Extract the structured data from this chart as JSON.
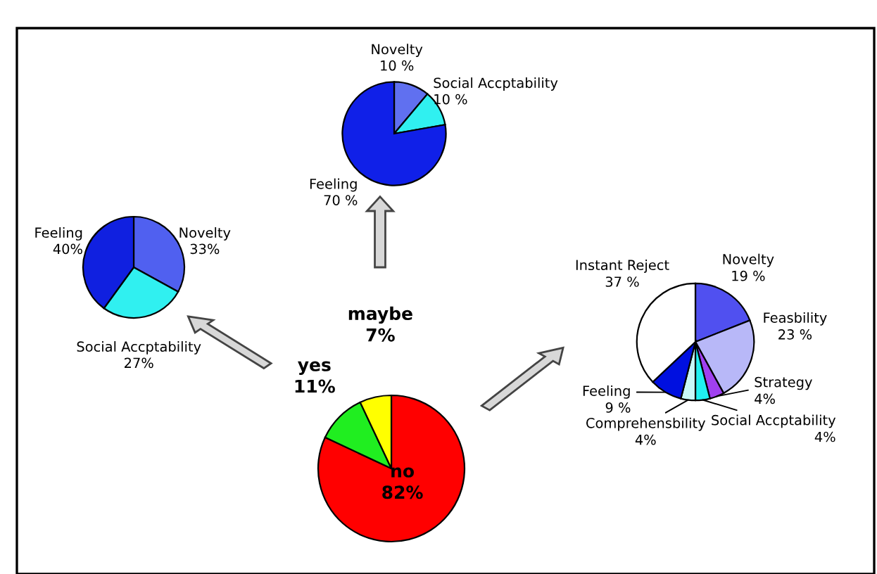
{
  "chart_data": [
    {
      "type": "pie",
      "categories": [
        "Novelty",
        "Social Accptability",
        "Feeling"
      ],
      "values": [
        10,
        10,
        70
      ],
      "value_labels": [
        "10 %",
        "10 %",
        "70 %"
      ],
      "colors": [
        "#6070f0",
        "#30f0f0",
        "#1020e8"
      ]
    },
    {
      "type": "pie",
      "categories": [
        "Novelty",
        "Social Accptability",
        "Feeling"
      ],
      "values": [
        33,
        27,
        40
      ],
      "value_labels": [
        "33%",
        "27%",
        "40%"
      ],
      "colors": [
        "#5060f0",
        "#30f0f0",
        "#1020e0"
      ]
    },
    {
      "type": "pie",
      "categories": [
        "Novelty",
        "Feasbility",
        "Strategy",
        "Social Accptability",
        "Comprehensbility",
        "Feeling",
        "Instant Reject"
      ],
      "values": [
        19,
        23,
        4,
        4,
        4,
        9,
        37
      ],
      "value_labels": [
        "19 %",
        "23 %",
        "4%",
        "4%",
        "4%",
        "9 %",
        "37 %"
      ],
      "colors": [
        "#5050f0",
        "#b8b8f8",
        "#a040f0",
        "#20f0f0",
        "#c8f8f8",
        "#0010e0",
        "#ffffff"
      ]
    },
    {
      "type": "pie",
      "categories": [
        "no",
        "yes",
        "maybe"
      ],
      "values": [
        82,
        11,
        7
      ],
      "value_labels": [
        "82%",
        "11%",
        "7%"
      ],
      "colors": [
        "#ff0000",
        "#20ee20",
        "#ffff00"
      ]
    }
  ]
}
